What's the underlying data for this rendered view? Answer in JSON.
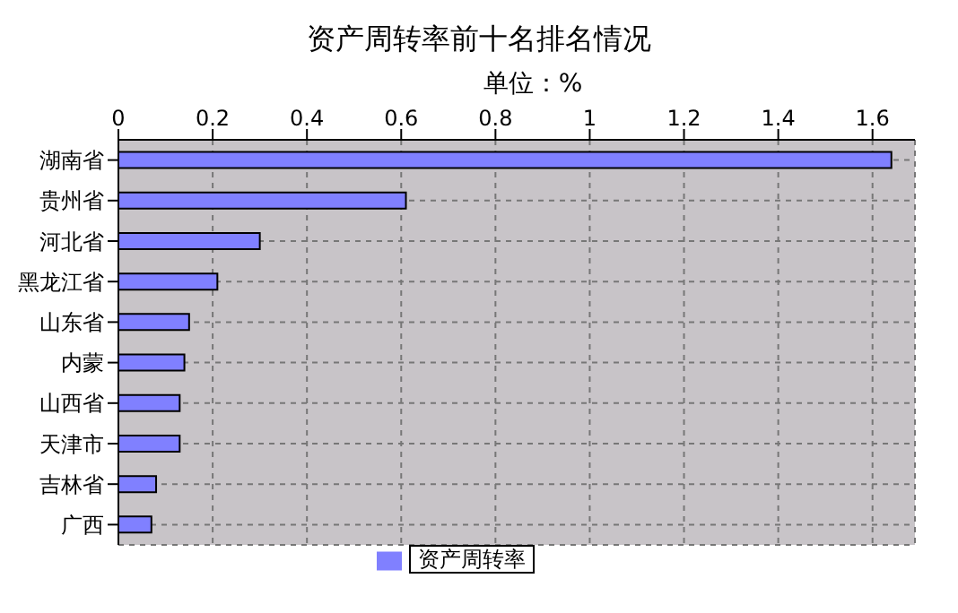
{
  "chart_data": {
    "type": "bar",
    "orientation": "horizontal",
    "title": "资产周转率前十名排名情况",
    "xlabel": "单位：%",
    "categories": [
      "湖南省",
      "贵州省",
      "河北省",
      "黑龙江省",
      "山东省",
      "内蒙",
      "山西省",
      "天津市",
      "吉林省",
      "广西"
    ],
    "series": [
      {
        "name": "资产周转率",
        "color": "#8080ff",
        "values": [
          1.64,
          0.61,
          0.3,
          0.21,
          0.15,
          0.14,
          0.13,
          0.13,
          0.08,
          0.07
        ]
      }
    ],
    "xlim": [
      0,
      1.69
    ],
    "xticks": [
      0,
      0.2,
      0.4,
      0.6,
      0.8,
      1,
      1.2,
      1.4,
      1.6
    ],
    "grid": true,
    "legend": "bottom"
  }
}
